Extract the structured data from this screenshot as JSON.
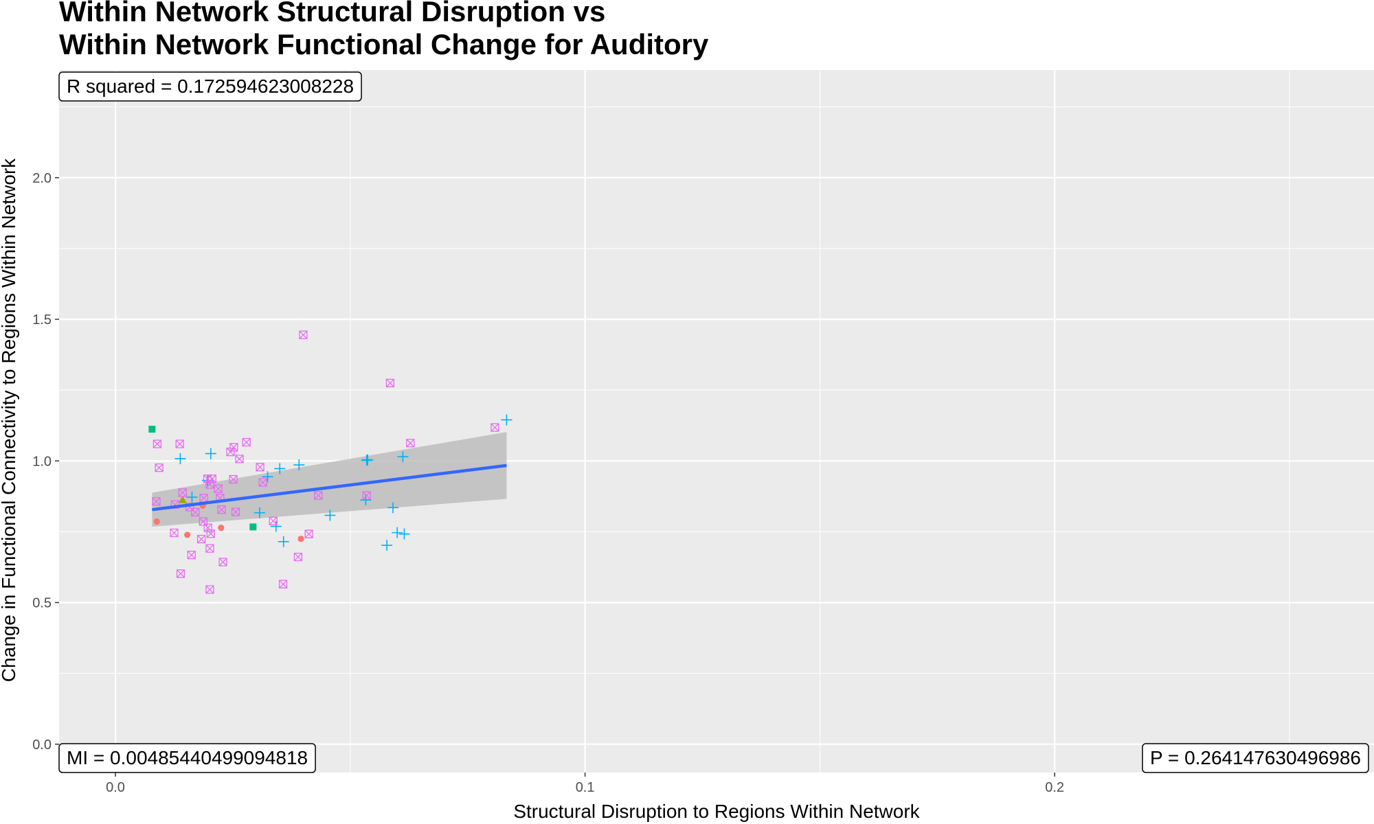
{
  "chart_data": {
    "type": "scatter",
    "title_lines": [
      "Within Network Structural Disruption vs",
      "Within Network Functional Change for Auditory"
    ],
    "xlabel": "Structural Disruption to Regions Within Network",
    "ylabel": "Change in Functional Connectivity to Regions Within Network",
    "xlim": [
      -0.012,
      0.268
    ],
    "ylim": [
      -0.1,
      2.38
    ],
    "x_ticks": [
      0.0,
      0.1,
      0.2
    ],
    "x_tick_labels": [
      "0.0",
      "0.1",
      "0.2"
    ],
    "y_ticks": [
      0.0,
      0.5,
      1.0,
      1.5,
      2.0
    ],
    "y_tick_labels": [
      "0.0",
      "0.5",
      "1.0",
      "1.5",
      "2.0"
    ],
    "grid": true,
    "legend": "none",
    "annotations": {
      "r_squared": "R squared =  0.172594623008228",
      "mi": "MI =  0.00485440499094818",
      "p": "P =  0.264147630496986"
    },
    "fit_line": {
      "x": [
        0.0078,
        0.0833
      ],
      "y": [
        0.828,
        0.984
      ],
      "color": "#3366ff",
      "ci_lower": [
        0.768,
        0.866
      ],
      "ci_upper": [
        0.888,
        1.102
      ],
      "ci_color": "#bdbdbd"
    },
    "series": [
      {
        "shape": "circle",
        "color": "#f8766d",
        "points": [
          [
            0.0088,
            0.786
          ],
          [
            0.0153,
            0.739
          ],
          [
            0.0225,
            0.764
          ],
          [
            0.0395,
            0.725
          ],
          [
            0.0186,
            0.842
          ]
        ]
      },
      {
        "shape": "triangle",
        "color": "#a3a500",
        "points": [
          [
            0.0143,
            0.862
          ]
        ]
      },
      {
        "shape": "square",
        "color": "#00bf7d",
        "points": [
          [
            0.0078,
            1.112
          ],
          [
            0.0293,
            0.767
          ]
        ]
      },
      {
        "shape": "plus",
        "color": "#00b0f6",
        "points": [
          [
            0.0833,
            1.145
          ],
          [
            0.0138,
            1.008
          ],
          [
            0.0203,
            1.026
          ],
          [
            0.0196,
            0.931
          ],
          [
            0.0163,
            0.872
          ],
          [
            0.0324,
            0.944
          ],
          [
            0.035,
            0.973
          ],
          [
            0.0391,
            0.986
          ],
          [
            0.0307,
            0.817
          ],
          [
            0.0342,
            0.769
          ],
          [
            0.0358,
            0.715
          ],
          [
            0.0457,
            0.808
          ],
          [
            0.0533,
            0.862
          ],
          [
            0.0535,
            1.002
          ],
          [
            0.0537,
            1.004
          ],
          [
            0.0591,
            0.835
          ],
          [
            0.06,
            0.747
          ],
          [
            0.0615,
            0.742
          ],
          [
            0.0578,
            0.702
          ],
          [
            0.0612,
            1.015
          ]
        ]
      },
      {
        "shape": "boxed-x",
        "color": "#e76bf3",
        "points": [
          [
            0.04,
            1.445
          ],
          [
            0.0585,
            1.275
          ],
          [
            0.0808,
            1.118
          ],
          [
            0.0628,
            1.063
          ],
          [
            0.0089,
            1.06
          ],
          [
            0.0137,
            1.06
          ],
          [
            0.0093,
            0.976
          ],
          [
            0.0279,
            1.066
          ],
          [
            0.0252,
            1.048
          ],
          [
            0.0245,
            1.032
          ],
          [
            0.0264,
            1.007
          ],
          [
            0.0308,
            0.978
          ],
          [
            0.0314,
            0.924
          ],
          [
            0.0251,
            0.935
          ],
          [
            0.0196,
            0.937
          ],
          [
            0.0206,
            0.937
          ],
          [
            0.0201,
            0.917
          ],
          [
            0.0219,
            0.902
          ],
          [
            0.0143,
            0.888
          ],
          [
            0.0223,
            0.869
          ],
          [
            0.0188,
            0.869
          ],
          [
            0.0432,
            0.878
          ],
          [
            0.0535,
            0.878
          ],
          [
            0.0087,
            0.857
          ],
          [
            0.0127,
            0.846
          ],
          [
            0.0158,
            0.837
          ],
          [
            0.0226,
            0.828
          ],
          [
            0.0256,
            0.82
          ],
          [
            0.017,
            0.819
          ],
          [
            0.0187,
            0.786
          ],
          [
            0.0197,
            0.764
          ],
          [
            0.0336,
            0.788
          ],
          [
            0.0125,
            0.746
          ],
          [
            0.0203,
            0.743
          ],
          [
            0.0183,
            0.724
          ],
          [
            0.0412,
            0.742
          ],
          [
            0.0201,
            0.691
          ],
          [
            0.0162,
            0.668
          ],
          [
            0.0229,
            0.643
          ],
          [
            0.0389,
            0.661
          ],
          [
            0.0139,
            0.602
          ],
          [
            0.0357,
            0.565
          ],
          [
            0.0201,
            0.546
          ]
        ]
      }
    ]
  }
}
